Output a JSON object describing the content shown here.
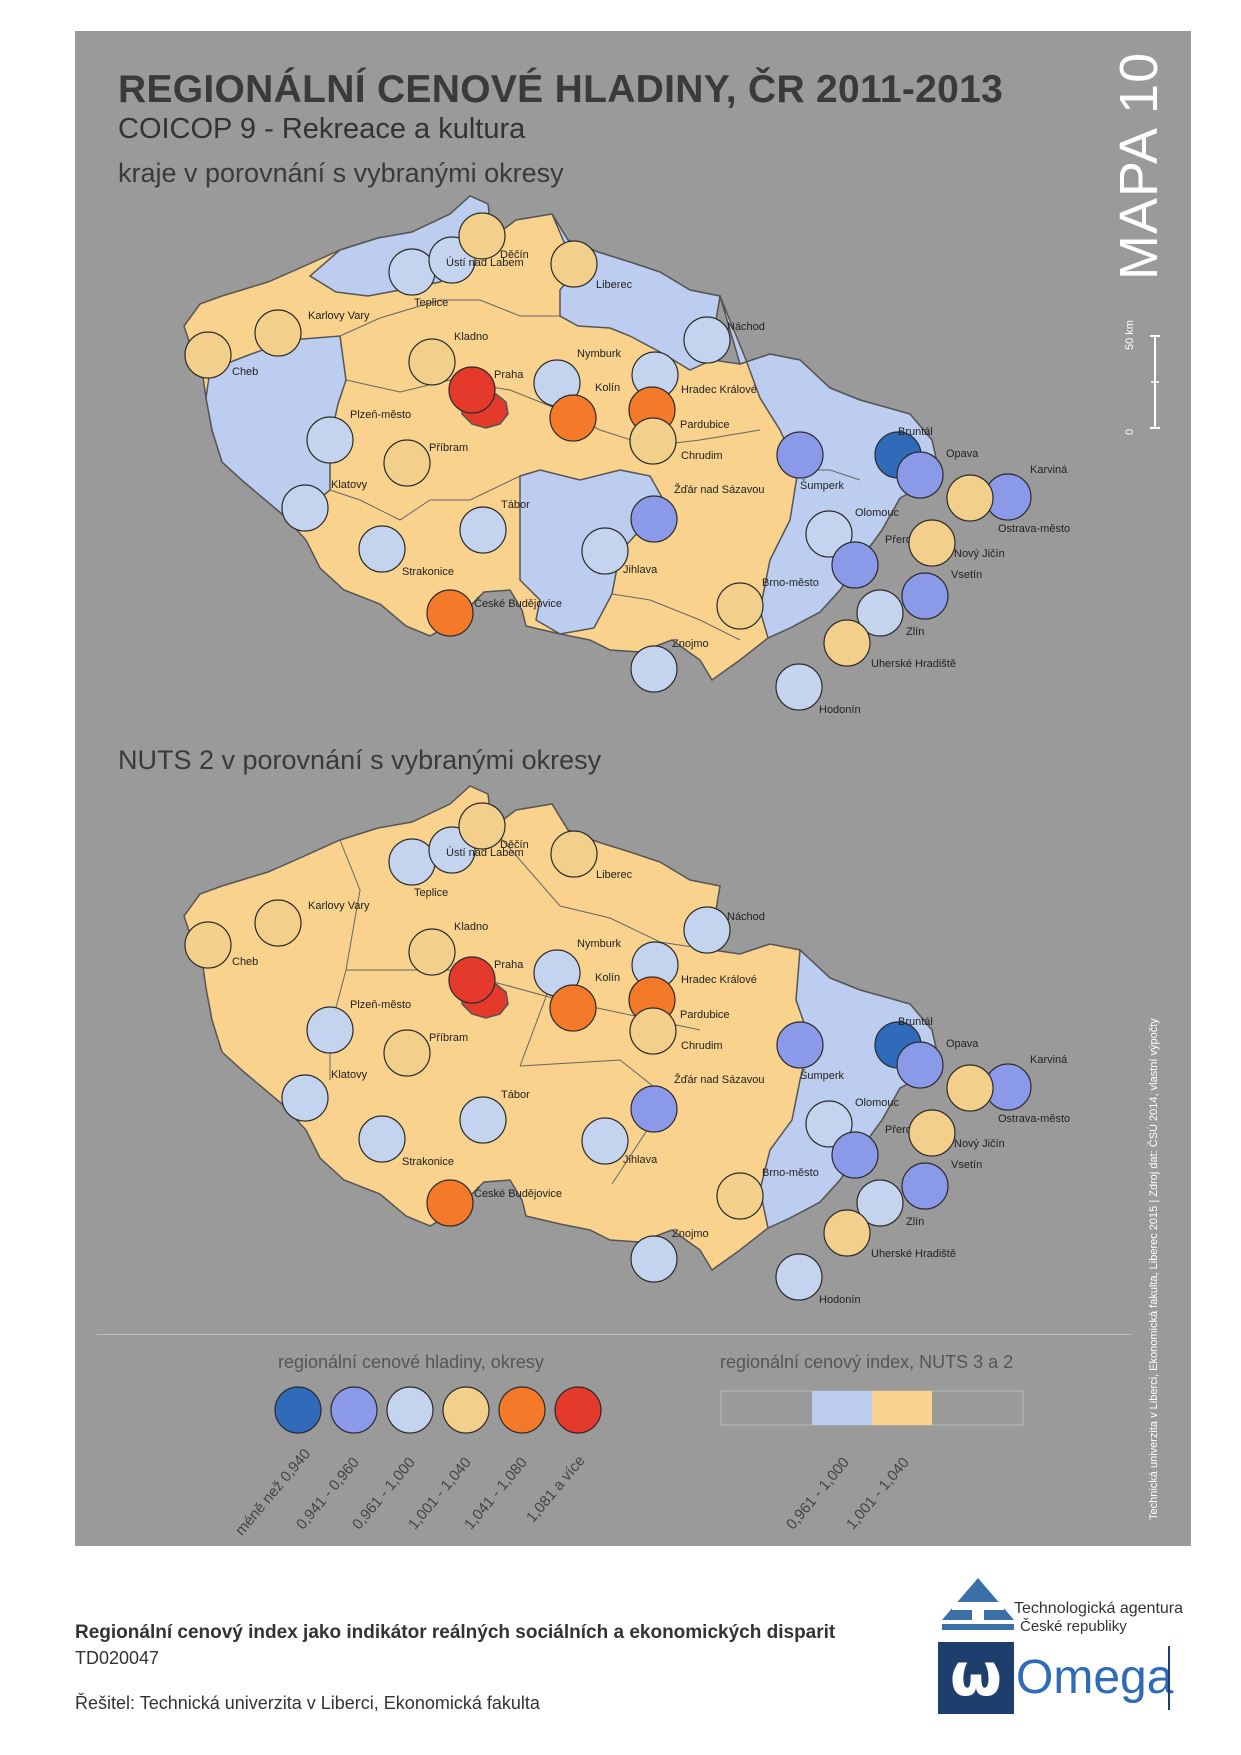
{
  "title": "REGIONÁLNÍ CENOVÉ HLADINY, ČR 2011-2013",
  "subtitle": "COICOP 9 - Rekreace a kultura",
  "section_kraje": "kraje v porovnání s vybranými okresy",
  "section_nuts": "NUTS 2 v porovnání s vybranými okresy",
  "map_number": "MAPA 10",
  "scale": {
    "label": "50 km",
    "zero": "0"
  },
  "colors": {
    "class_1": "#2f6bb8",
    "class_2": "#8a9ae8",
    "class_3": "#c5d4ee",
    "class_4": "#f2cf8a",
    "class_5": "#f47a2a",
    "class_6": "#e33a2c",
    "region_low": "#bccdf0",
    "region_high": "#f9d28d",
    "background": "#9a9a9a"
  },
  "maps": [
    {
      "name": "kraje",
      "districts": [
        {
          "name": "Cheb",
          "class": 4
        },
        {
          "name": "Karlovy Vary",
          "class": 4
        },
        {
          "name": "Teplice",
          "class": 3
        },
        {
          "name": "Ústí nad Labem",
          "class": 3
        },
        {
          "name": "Děčín",
          "class": 4
        },
        {
          "name": "Liberec",
          "class": 4
        },
        {
          "name": "Náchod",
          "class": 3
        },
        {
          "name": "Kladno",
          "class": 4
        },
        {
          "name": "Praha",
          "class": 6
        },
        {
          "name": "Nymburk",
          "class": 3
        },
        {
          "name": "Kolín",
          "class": 5
        },
        {
          "name": "Hradec Králové",
          "class": 3
        },
        {
          "name": "Pardubice",
          "class": 5
        },
        {
          "name": "Chrudim",
          "class": 4
        },
        {
          "name": "Plzeň-město",
          "class": 3
        },
        {
          "name": "Příbram",
          "class": 4
        },
        {
          "name": "Klatovy",
          "class": 3
        },
        {
          "name": "Tábor",
          "class": 3
        },
        {
          "name": "Strakonice",
          "class": 3
        },
        {
          "name": "České Budějovice",
          "class": 5
        },
        {
          "name": "Žďár nad Sázavou",
          "class": 2
        },
        {
          "name": "Jihlava",
          "class": 3
        },
        {
          "name": "Znojmo",
          "class": 3
        },
        {
          "name": "Brno-město",
          "class": 4
        },
        {
          "name": "Hodonín",
          "class": 3
        },
        {
          "name": "Šumperk",
          "class": 2
        },
        {
          "name": "Bruntál",
          "class": 1
        },
        {
          "name": "Opava",
          "class": 2
        },
        {
          "name": "Karviná",
          "class": 2
        },
        {
          "name": "Ostrava-město",
          "class": 4
        },
        {
          "name": "Olomouc",
          "class": 3
        },
        {
          "name": "Přerov",
          "class": 2
        },
        {
          "name": "Nový Jičín",
          "class": 4
        },
        {
          "name": "Vsetín",
          "class": 2
        },
        {
          "name": "Zlín",
          "class": 3
        },
        {
          "name": "Uherské Hradiště",
          "class": 4
        }
      ]
    },
    {
      "name": "nuts2",
      "districts": [
        {
          "name": "Cheb",
          "class": 4
        },
        {
          "name": "Karlovy Vary",
          "class": 4
        },
        {
          "name": "Teplice",
          "class": 3
        },
        {
          "name": "Ústí nad Labem",
          "class": 3
        },
        {
          "name": "Děčín",
          "class": 4
        },
        {
          "name": "Liberec",
          "class": 4
        },
        {
          "name": "Náchod",
          "class": 3
        },
        {
          "name": "Kladno",
          "class": 4
        },
        {
          "name": "Praha",
          "class": 6
        },
        {
          "name": "Nymburk",
          "class": 3
        },
        {
          "name": "Kolín",
          "class": 5
        },
        {
          "name": "Hradec Králové",
          "class": 3
        },
        {
          "name": "Pardubice",
          "class": 5
        },
        {
          "name": "Chrudim",
          "class": 4
        },
        {
          "name": "Plzeň-město",
          "class": 3
        },
        {
          "name": "Příbram",
          "class": 4
        },
        {
          "name": "Klatovy",
          "class": 3
        },
        {
          "name": "Tábor",
          "class": 3
        },
        {
          "name": "Strakonice",
          "class": 3
        },
        {
          "name": "České Budějovice",
          "class": 5
        },
        {
          "name": "Žďár nad Sázavou",
          "class": 2
        },
        {
          "name": "Jihlava",
          "class": 3
        },
        {
          "name": "Znojmo",
          "class": 3
        },
        {
          "name": "Brno-město",
          "class": 4
        },
        {
          "name": "Hodonín",
          "class": 3
        },
        {
          "name": "Šumperk",
          "class": 2
        },
        {
          "name": "Bruntál",
          "class": 1
        },
        {
          "name": "Opava",
          "class": 2
        },
        {
          "name": "Karviná",
          "class": 2
        },
        {
          "name": "Ostrava-město",
          "class": 4
        },
        {
          "name": "Olomouc",
          "class": 3
        },
        {
          "name": "Přerov",
          "class": 2
        },
        {
          "name": "Nový Jičín",
          "class": 4
        },
        {
          "name": "Vsetín",
          "class": 2
        },
        {
          "name": "Zlín",
          "class": 3
        },
        {
          "name": "Uherské Hradiště",
          "class": 4
        }
      ]
    }
  ],
  "legend_districts": {
    "title": "regionální cenové hladiny, okresy",
    "items": [
      {
        "label": "méně než 0,940",
        "color": "#2f6bb8"
      },
      {
        "label": "0,941 - 0,960",
        "color": "#8a9ae8"
      },
      {
        "label": "0,961 - 1,000",
        "color": "#c5d4ee"
      },
      {
        "label": "1,001 - 1,040",
        "color": "#f2cf8a"
      },
      {
        "label": "1,041 - 1,080",
        "color": "#f47a2a"
      },
      {
        "label": "1,081 a více",
        "color": "#e33a2c"
      }
    ]
  },
  "legend_regions": {
    "title": "regionální cenový index, NUTS 3 a 2",
    "items": [
      {
        "label": "0,961 - 1,000",
        "color": "#bccdf0"
      },
      {
        "label": "1,001 - 1,040",
        "color": "#f9d28d"
      }
    ]
  },
  "source_note": "Technická univerzita v Liberci, Ekonomická fakulta, Liberec 2015 | Zdroj dat: ČSÚ 2014, vlastní výpočty",
  "footer": {
    "project": "Regionální cenový index jako indikátor reálných sociálních a ekonomických disparit",
    "code": "TD020047",
    "solver": "Řešitel: Technická univerzita v Liberci, Ekonomická fakulta"
  },
  "logos": {
    "ta_line1": "Technologická agentura",
    "ta_line2": "České republiky",
    "omega": "Omega",
    "omega_mark": "ω"
  }
}
